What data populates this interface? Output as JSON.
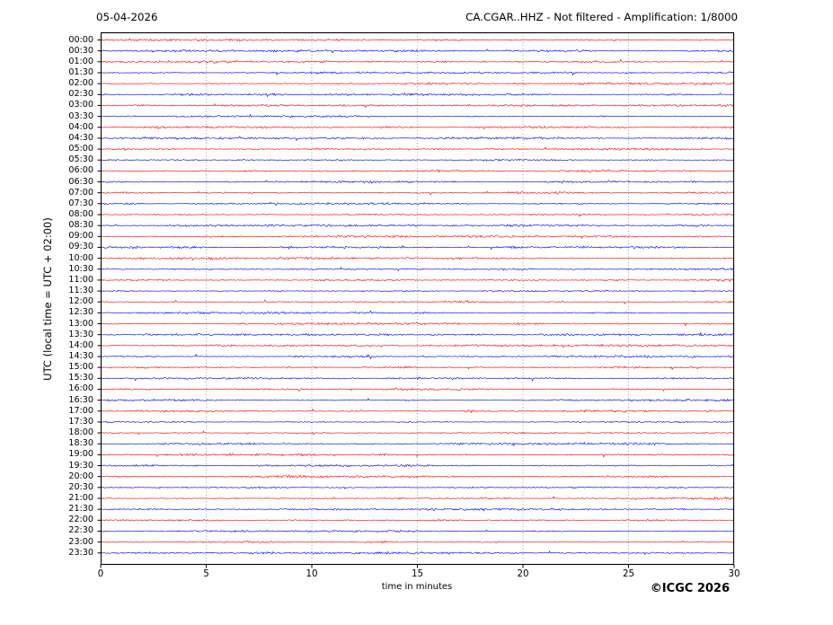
{
  "header": {
    "date": "05-04-2026",
    "title": "CA.CGAR..HHZ - Not filtered - Amplification: 1/8000"
  },
  "axes": {
    "y_label": "UTC (local time = UTC + 02:00)",
    "x_label": "time in minutes",
    "x_ticks": [
      "0",
      "5",
      "10",
      "15",
      "20",
      "25",
      "30"
    ],
    "x_range": [
      0,
      30
    ]
  },
  "footer": {
    "copyright": "©ICGC 2026"
  },
  "colors": {
    "trace_red": "#ff0000",
    "trace_blue": "#0000ff",
    "grid": "#999999",
    "axis": "#000000",
    "background": "#ffffff"
  },
  "chart_data": {
    "type": "line",
    "subtype": "seismogram-helicorder-dayplot",
    "station": "CA.CGAR..HHZ",
    "filter": "Not filtered",
    "amplification": "1/8000",
    "date": "05-04-2026",
    "xlabel": "time in minutes",
    "ylabel": "UTC (local time = UTC + 02:00)",
    "xlim": [
      0,
      30
    ],
    "xticks": [
      0,
      5,
      10,
      15,
      20,
      25,
      30
    ],
    "grid": "vertical dotted gridlines every 5 minutes",
    "minutes_per_row": 30,
    "legend_position": "none",
    "rows": [
      {
        "label": "00:00",
        "color": "#ff0000"
      },
      {
        "label": "00:30",
        "color": "#0000ff"
      },
      {
        "label": "01:00",
        "color": "#ff0000"
      },
      {
        "label": "01:30",
        "color": "#0000ff"
      },
      {
        "label": "02:00",
        "color": "#ff0000"
      },
      {
        "label": "02:30",
        "color": "#0000ff"
      },
      {
        "label": "03:00",
        "color": "#ff0000"
      },
      {
        "label": "03:30",
        "color": "#0000ff"
      },
      {
        "label": "04:00",
        "color": "#ff0000"
      },
      {
        "label": "04:30",
        "color": "#0000ff"
      },
      {
        "label": "05:00",
        "color": "#ff0000"
      },
      {
        "label": "05:30",
        "color": "#0000ff"
      },
      {
        "label": "06:00",
        "color": "#ff0000"
      },
      {
        "label": "06:30",
        "color": "#0000ff"
      },
      {
        "label": "07:00",
        "color": "#ff0000"
      },
      {
        "label": "07:30",
        "color": "#0000ff"
      },
      {
        "label": "08:00",
        "color": "#ff0000"
      },
      {
        "label": "08:30",
        "color": "#0000ff"
      },
      {
        "label": "09:00",
        "color": "#ff0000"
      },
      {
        "label": "09:30",
        "color": "#0000ff"
      },
      {
        "label": "10:00",
        "color": "#ff0000"
      },
      {
        "label": "10:30",
        "color": "#0000ff"
      },
      {
        "label": "11:00",
        "color": "#ff0000"
      },
      {
        "label": "11:30",
        "color": "#0000ff"
      },
      {
        "label": "12:00",
        "color": "#ff0000"
      },
      {
        "label": "12:30",
        "color": "#0000ff"
      },
      {
        "label": "13:00",
        "color": "#ff0000"
      },
      {
        "label": "13:30",
        "color": "#0000ff"
      },
      {
        "label": "14:00",
        "color": "#ff0000"
      },
      {
        "label": "14:30",
        "color": "#0000ff"
      },
      {
        "label": "15:00",
        "color": "#ff0000"
      },
      {
        "label": "15:30",
        "color": "#0000ff"
      },
      {
        "label": "16:00",
        "color": "#ff0000"
      },
      {
        "label": "16:30",
        "color": "#0000ff"
      },
      {
        "label": "17:00",
        "color": "#ff0000"
      },
      {
        "label": "17:30",
        "color": "#0000ff"
      },
      {
        "label": "18:00",
        "color": "#ff0000"
      },
      {
        "label": "18:30",
        "color": "#0000ff"
      },
      {
        "label": "19:00",
        "color": "#ff0000"
      },
      {
        "label": "19:30",
        "color": "#0000ff"
      },
      {
        "label": "20:00",
        "color": "#ff0000"
      },
      {
        "label": "20:30",
        "color": "#0000ff"
      },
      {
        "label": "21:00",
        "color": "#ff0000"
      },
      {
        "label": "21:30",
        "color": "#0000ff"
      },
      {
        "label": "22:00",
        "color": "#ff0000"
      },
      {
        "label": "22:30",
        "color": "#0000ff"
      },
      {
        "label": "23:00",
        "color": "#ff0000"
      },
      {
        "label": "23:30",
        "color": "#0000ff"
      }
    ],
    "content_note": "All 48 half-hour traces show continuous low-amplitude background noise; no distinct seismic events visible."
  }
}
